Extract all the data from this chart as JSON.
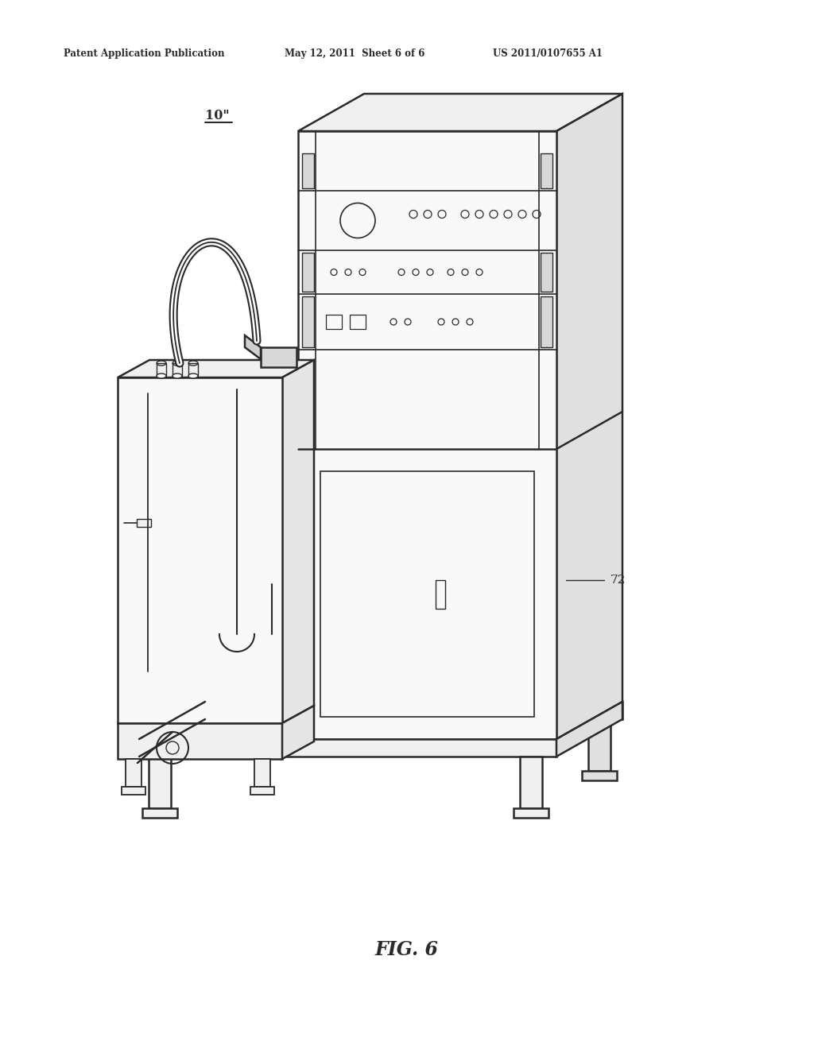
{
  "bg_color": "#ffffff",
  "line_color": "#2a2a2a",
  "lw": 1.8,
  "header_left": "Patent Application Publication",
  "header_center": "May 12, 2011  Sheet 6 of 6",
  "header_right": "US 2011/0107655 A1",
  "label_10": "10\"",
  "label_72": "72",
  "fig_label": "FIG. 6",
  "figsize": [
    10.24,
    13.2
  ],
  "dpi": 100
}
